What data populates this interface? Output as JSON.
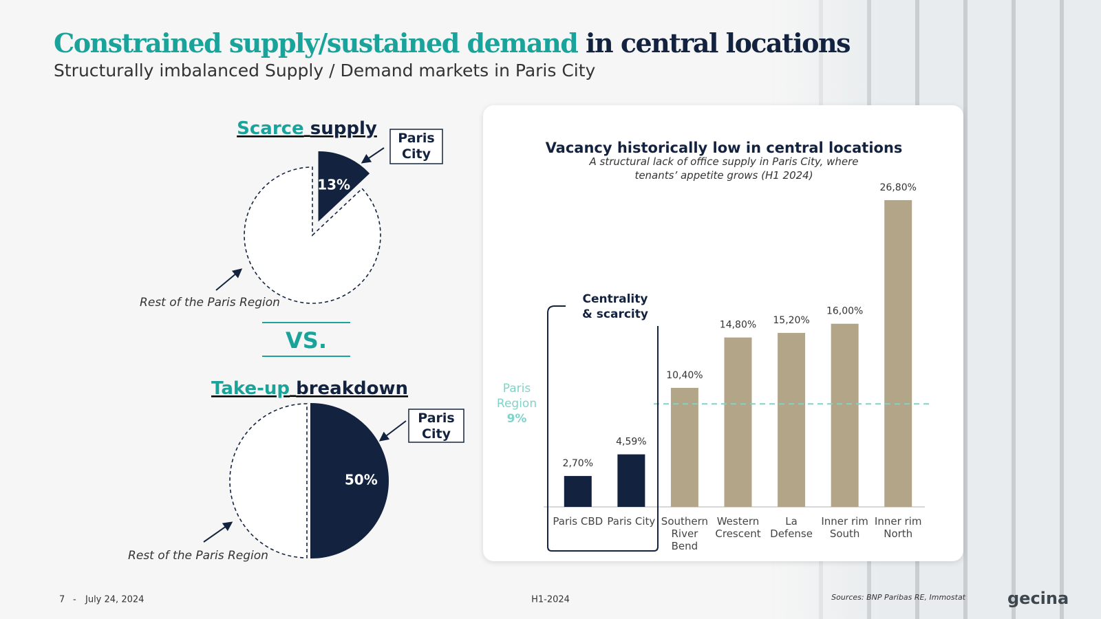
{
  "header": {
    "title_highlight": "Constrained supply/sustained demand",
    "title_rest": "in central locations",
    "subtitle": "Structurally imbalanced Supply / Demand markets in Paris City"
  },
  "versus": "VS.",
  "chart_data": [
    {
      "type": "pie",
      "title": [
        "Scarce",
        "supply"
      ],
      "categories": [
        "Paris City",
        "Rest of the Paris Region"
      ],
      "values": [
        13,
        87
      ],
      "value_labels": [
        "13%",
        null
      ],
      "colors": [
        "#13233f",
        "#ffffff"
      ]
    },
    {
      "type": "pie",
      "title": [
        "Take-up",
        "breakdown"
      ],
      "categories": [
        "Paris City",
        "Rest of the Paris Region"
      ],
      "values": [
        50,
        50
      ],
      "value_labels": [
        "50%",
        null
      ],
      "colors": [
        "#13233f",
        "#ffffff"
      ]
    },
    {
      "type": "bar",
      "title": "Vacancy historically low in central locations",
      "subtitle": "A structural lack of office supply in Paris City, where tenants’ appetite grows (H1 2024)",
      "categories": [
        "Paris CBD",
        "Paris City",
        "Southern River Bend",
        "Western Crescent",
        "La Defense",
        "Inner rim South",
        "Inner rim North"
      ],
      "values": [
        2.7,
        4.59,
        10.4,
        14.8,
        15.2,
        16.0,
        26.8
      ],
      "value_labels": [
        "2,70%",
        "4,59%",
        "10,40%",
        "14,80%",
        "15,20%",
        "16,00%",
        "26,80%"
      ],
      "colors": [
        "#13233f",
        "#13233f",
        "#b3a688",
        "#b3a688",
        "#b3a688",
        "#b3a688",
        "#b3a688"
      ],
      "ylim": [
        0,
        28
      ],
      "reference": {
        "label": "Paris Region",
        "value": 9,
        "value_label": "9%",
        "color": "#7fd3c9"
      },
      "annotation": "Centrality & scarcity"
    }
  ],
  "footer": {
    "page": "7",
    "separator": "-",
    "date": "July 24, 2024",
    "period": "H1-2024",
    "sources": "Sources: BNP Paribas RE, Immostat",
    "logo": "gecina"
  }
}
